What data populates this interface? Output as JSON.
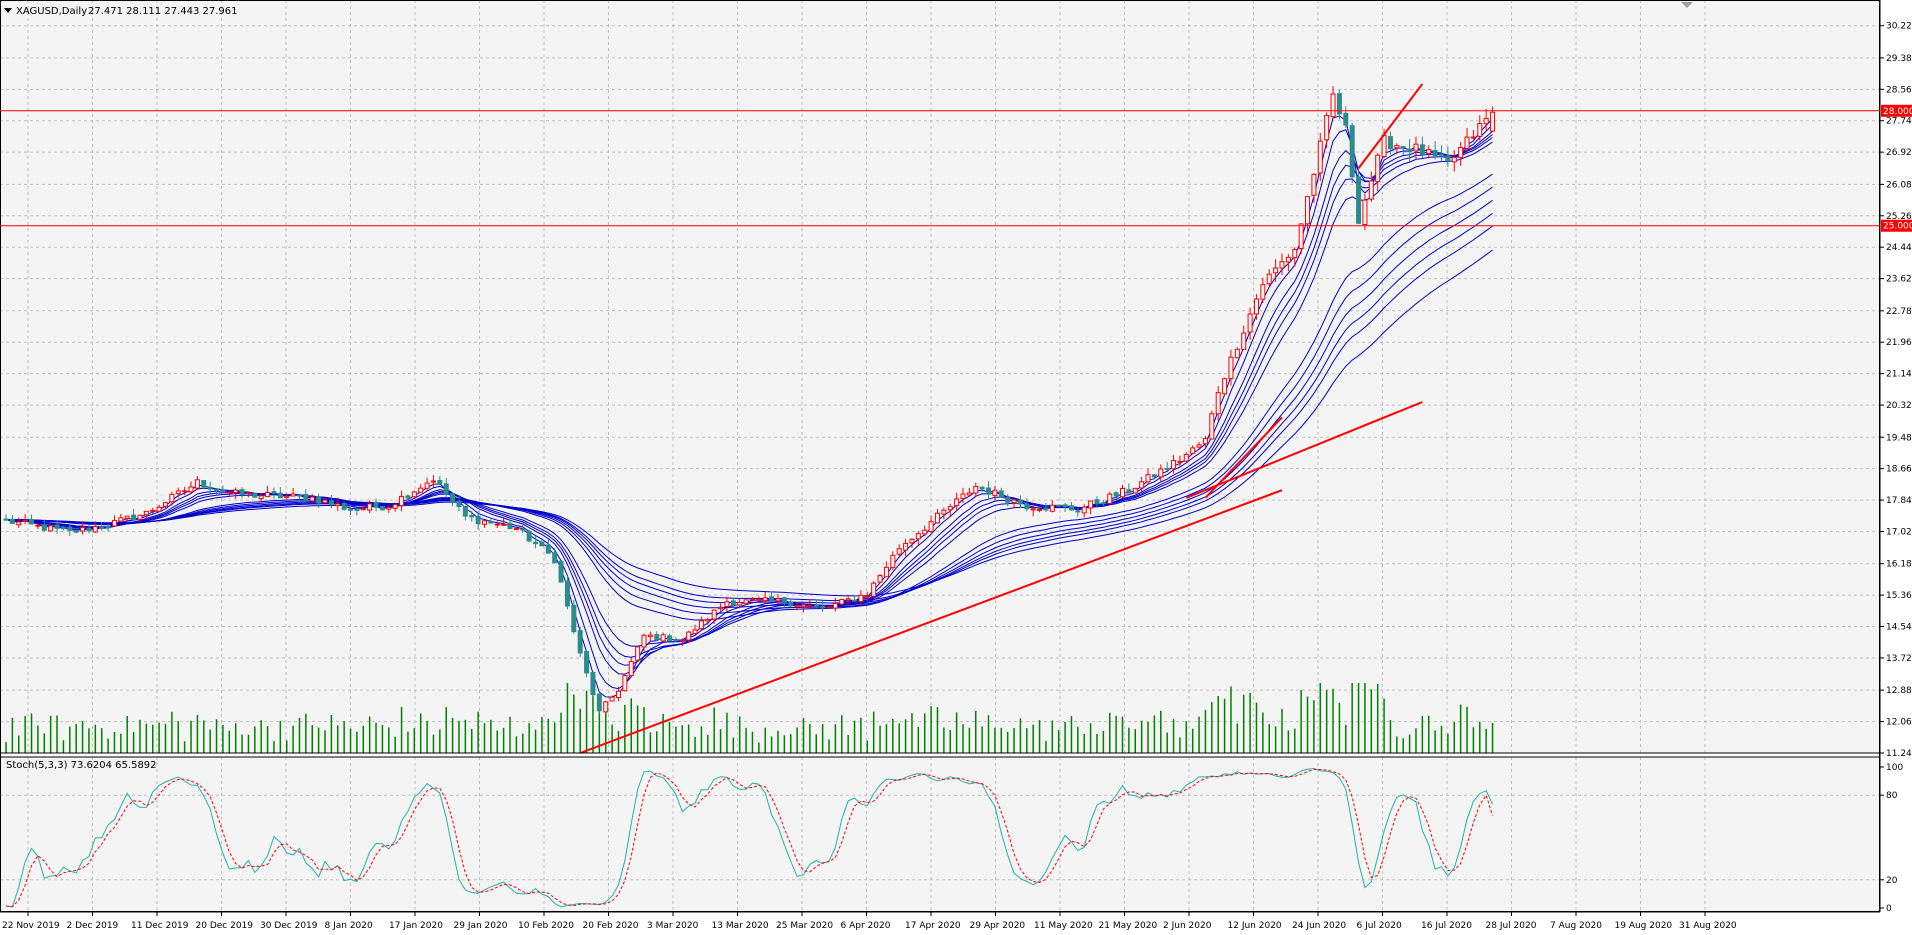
{
  "header": {
    "symbol": "XAGUSD,Daily",
    "ohlc": "27.471 28.111 27.443 27.961"
  },
  "chart_data": {
    "type": "candlestick",
    "symbol": "XAGUSD",
    "timeframe": "Daily",
    "last_bar": {
      "open": 27.471,
      "high": 28.111,
      "low": 27.443,
      "close": 27.961
    },
    "x_labels": [
      "22 Nov 2019",
      "2 Dec 2019",
      "11 Dec 2019",
      "20 Dec 2019",
      "30 Dec 2019",
      "8 Jan 2020",
      "17 Jan 2020",
      "29 Jan 2020",
      "10 Feb 2020",
      "20 Feb 2020",
      "3 Mar 2020",
      "13 Mar 2020",
      "25 Mar 2020",
      "6 Apr 2020",
      "17 Apr 2020",
      "29 Apr 2020",
      "11 May 2020",
      "21 May 2020",
      "2 Jun 2020",
      "12 Jun 2020",
      "24 Jun 2020",
      "6 Jul 2020",
      "16 Jul 2020",
      "28 Jul 2020",
      "7 Aug 2020",
      "19 Aug 2020",
      "31 Aug 2020"
    ],
    "y_labels": [
      "30.220",
      "29.380",
      "28.560",
      "27.740",
      "26.920",
      "26.080",
      "25.260",
      "24.440",
      "23.620",
      "22.780",
      "21.960",
      "21.140",
      "20.320",
      "19.480",
      "18.660",
      "17.840",
      "17.020",
      "16.180",
      "15.360",
      "14.540",
      "13.720",
      "12.880",
      "12.060",
      "11.240"
    ],
    "ylim": [
      11.24,
      30.63
    ],
    "closes_keypoints": [
      [
        0,
        17.3
      ],
      [
        10,
        17.0
      ],
      [
        16,
        17.2
      ],
      [
        22,
        17.5
      ],
      [
        30,
        18.3
      ],
      [
        36,
        18.0
      ],
      [
        48,
        17.9
      ],
      [
        54,
        17.6
      ],
      [
        60,
        17.7
      ],
      [
        67,
        18.4
      ],
      [
        72,
        17.4
      ],
      [
        80,
        17.1
      ],
      [
        86,
        16.3
      ],
      [
        90,
        13.8
      ],
      [
        93,
        12.3
      ],
      [
        96,
        12.9
      ],
      [
        100,
        14.3
      ],
      [
        106,
        14.2
      ],
      [
        113,
        15.2
      ],
      [
        122,
        15.2
      ],
      [
        128,
        15.0
      ],
      [
        135,
        15.4
      ],
      [
        140,
        16.6
      ],
      [
        146,
        17.4
      ],
      [
        152,
        18.2
      ],
      [
        160,
        17.7
      ],
      [
        168,
        17.6
      ],
      [
        176,
        18.1
      ],
      [
        184,
        18.9
      ],
      [
        188,
        19.4
      ],
      [
        190,
        20.7
      ],
      [
        194,
        22.3
      ],
      [
        197,
        23.5
      ],
      [
        202,
        24.4
      ],
      [
        205,
        26.4
      ],
      [
        208,
        28.4
      ],
      [
        210,
        27.5
      ],
      [
        212,
        25.2
      ],
      [
        216,
        27.2
      ],
      [
        221,
        27.0
      ],
      [
        226,
        26.6
      ],
      [
        233,
        27.961
      ]
    ],
    "horizontal_levels": [
      28.0,
      25.0
    ],
    "level_labels": [
      "28.000",
      "25.000"
    ],
    "trendlines": [
      {
        "from": [
          90,
          11.24
        ],
        "to": [
          200,
          18.1
        ]
      },
      {
        "from": [
          185,
          17.9
        ],
        "to": [
          222,
          20.4
        ]
      },
      {
        "from": [
          188,
          17.9
        ],
        "to": [
          200,
          20.0
        ]
      },
      {
        "from": [
          212,
          26.5
        ],
        "to": [
          222,
          28.7
        ]
      }
    ],
    "moving_averages": {
      "periods": [
        3,
        5,
        8,
        10,
        12,
        15,
        30,
        35,
        40,
        45,
        50,
        60
      ],
      "color": "#0000cc"
    },
    "volume": {
      "bar_color": "#008000"
    },
    "colors": {
      "bull": "#ff0000",
      "bear": "#2e8b8b",
      "level": "#ff0000",
      "trend": "#ff0000",
      "grid": "#c0c0c0"
    },
    "grid": true
  },
  "stochastic": {
    "label": "Stoch(5,3,3) 73.6204 65.5892",
    "y_labels": [
      "100",
      "80",
      "20",
      "0"
    ],
    "ylim": [
      0,
      100
    ],
    "main_value": 73.6204,
    "signal_value": 65.5892,
    "main_color": "#20b2aa",
    "signal_color": "#ff0000"
  }
}
